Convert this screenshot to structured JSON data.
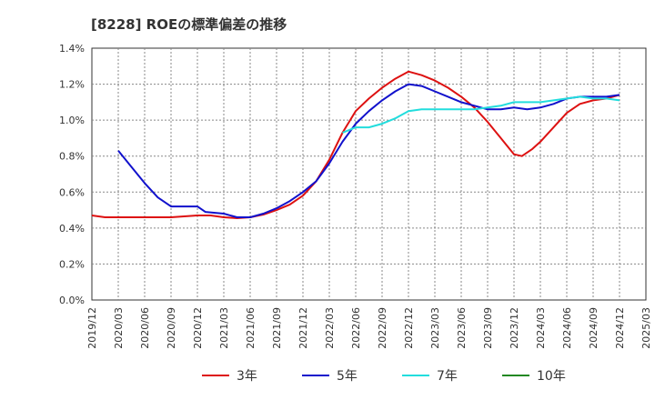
{
  "chart_data": {
    "type": "line",
    "title": "[8228]  ROEの標準偏差の推移",
    "xlabel": "",
    "ylabel": "",
    "ylim": [
      0,
      1.4
    ],
    "y_ticks": [
      0,
      0.2,
      0.4,
      0.6,
      0.8,
      1.0,
      1.2,
      1.4
    ],
    "y_tick_labels": [
      "0.0%",
      "0.2%",
      "0.4%",
      "0.6%",
      "0.8%",
      "1.0%",
      "1.2%",
      "1.4%"
    ],
    "x_tick_labels": [
      "2019/12",
      "2020/03",
      "2020/06",
      "2020/09",
      "2020/12",
      "2021/03",
      "2021/06",
      "2021/09",
      "2021/12",
      "2022/03",
      "2022/06",
      "2022/09",
      "2022/12",
      "2023/03",
      "2023/06",
      "2023/09",
      "2023/12",
      "2024/03",
      "2024/06",
      "2024/09",
      "2024/12",
      "2025/03"
    ],
    "x_range": [
      0,
      21
    ],
    "grid": true,
    "legend_position": "bottom",
    "series": [
      {
        "name": "3年",
        "color": "#dd1111",
        "points": [
          [
            0,
            0.47
          ],
          [
            0.5,
            0.46
          ],
          [
            1,
            0.46
          ],
          [
            2,
            0.46
          ],
          [
            3,
            0.46
          ],
          [
            3.5,
            0.465
          ],
          [
            4,
            0.47
          ],
          [
            4.5,
            0.47
          ],
          [
            5,
            0.46
          ],
          [
            5.5,
            0.455
          ],
          [
            6,
            0.46
          ],
          [
            6.5,
            0.475
          ],
          [
            7,
            0.5
          ],
          [
            7.5,
            0.53
          ],
          [
            8,
            0.58
          ],
          [
            8.5,
            0.66
          ],
          [
            9,
            0.78
          ],
          [
            9.5,
            0.93
          ],
          [
            10,
            1.05
          ],
          [
            10.5,
            1.12
          ],
          [
            11,
            1.18
          ],
          [
            11.5,
            1.23
          ],
          [
            12,
            1.27
          ],
          [
            12.5,
            1.25
          ],
          [
            13,
            1.22
          ],
          [
            13.5,
            1.18
          ],
          [
            14,
            1.13
          ],
          [
            14.5,
            1.07
          ],
          [
            15,
            0.99
          ],
          [
            15.5,
            0.9
          ],
          [
            16,
            0.81
          ],
          [
            16.3,
            0.8
          ],
          [
            16.7,
            0.84
          ],
          [
            17,
            0.88
          ],
          [
            17.5,
            0.96
          ],
          [
            18,
            1.04
          ],
          [
            18.5,
            1.09
          ],
          [
            19,
            1.11
          ],
          [
            19.5,
            1.12
          ],
          [
            20,
            1.14
          ]
        ]
      },
      {
        "name": "5年",
        "color": "#1111cc",
        "points": [
          [
            1,
            0.83
          ],
          [
            1.5,
            0.74
          ],
          [
            2,
            0.65
          ],
          [
            2.5,
            0.57
          ],
          [
            3,
            0.52
          ],
          [
            3.5,
            0.52
          ],
          [
            4,
            0.52
          ],
          [
            4.3,
            0.49
          ],
          [
            5,
            0.48
          ],
          [
            5.5,
            0.46
          ],
          [
            6,
            0.46
          ],
          [
            6.5,
            0.48
          ],
          [
            7,
            0.51
          ],
          [
            7.5,
            0.55
          ],
          [
            8,
            0.6
          ],
          [
            8.5,
            0.66
          ],
          [
            9,
            0.76
          ],
          [
            9.5,
            0.88
          ],
          [
            10,
            0.98
          ],
          [
            10.5,
            1.05
          ],
          [
            11,
            1.11
          ],
          [
            11.5,
            1.16
          ],
          [
            12,
            1.2
          ],
          [
            12.5,
            1.19
          ],
          [
            13,
            1.16
          ],
          [
            13.5,
            1.13
          ],
          [
            14,
            1.1
          ],
          [
            14.5,
            1.08
          ],
          [
            15,
            1.06
          ],
          [
            15.5,
            1.06
          ],
          [
            16,
            1.07
          ],
          [
            16.5,
            1.06
          ],
          [
            17,
            1.07
          ],
          [
            17.5,
            1.09
          ],
          [
            18,
            1.12
          ],
          [
            18.5,
            1.13
          ],
          [
            19,
            1.13
          ],
          [
            19.5,
            1.13
          ],
          [
            20,
            1.14
          ]
        ]
      },
      {
        "name": "7年",
        "color": "#22dddd",
        "points": [
          [
            9.5,
            0.93
          ],
          [
            10,
            0.96
          ],
          [
            10.5,
            0.96
          ],
          [
            11,
            0.98
          ],
          [
            11.5,
            1.01
          ],
          [
            12,
            1.05
          ],
          [
            12.5,
            1.06
          ],
          [
            13,
            1.06
          ],
          [
            13.5,
            1.06
          ],
          [
            14,
            1.06
          ],
          [
            14.5,
            1.06
          ],
          [
            15,
            1.07
          ],
          [
            15.5,
            1.08
          ],
          [
            16,
            1.1
          ],
          [
            16.5,
            1.1
          ],
          [
            17,
            1.1
          ],
          [
            17.5,
            1.11
          ],
          [
            18,
            1.12
          ],
          [
            18.5,
            1.13
          ],
          [
            19,
            1.12
          ],
          [
            19.5,
            1.12
          ],
          [
            20,
            1.11
          ]
        ]
      },
      {
        "name": "10年",
        "color": "#228822",
        "points": []
      }
    ]
  }
}
